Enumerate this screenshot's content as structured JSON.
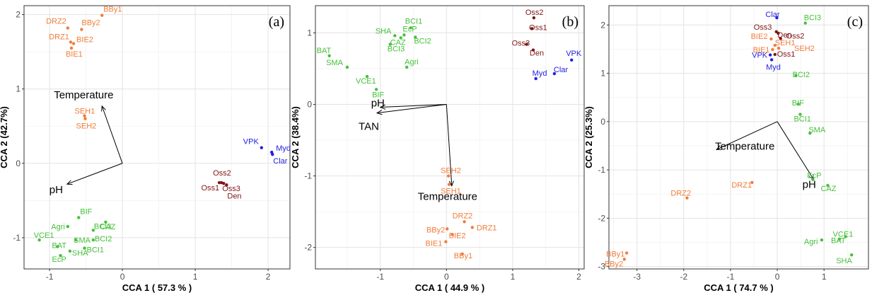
{
  "colors": {
    "gray": "#a01717",
    "orange": "#f07d3a",
    "green": "#45c13a",
    "blue": "#1f1fe0",
    "darkred": "#7f1515"
  },
  "chart_data": [
    {
      "type": "scatter",
      "panel_tag": "(a)",
      "xlabel": "CCA 1  ( 57.3 % )",
      "ylabel": "CCA 2 (42.7%)",
      "xlim": [
        -1.35,
        2.3
      ],
      "ylim": [
        -1.42,
        2.12
      ],
      "xticks": [
        -1,
        0,
        1,
        2
      ],
      "yticks": [
        -1,
        0,
        1,
        2
      ],
      "series": [
        {
          "color": "orange",
          "points": [
            {
              "label": "BBy1",
              "x": -0.28,
              "y": 1.99
            },
            {
              "label": "BBy2",
              "x": -0.56,
              "y": 1.8
            },
            {
              "label": "DRZ2",
              "x": -0.75,
              "y": 1.82
            },
            {
              "label": "DRZ1",
              "x": -0.71,
              "y": 1.63
            },
            {
              "label": "BIE2",
              "x": -0.67,
              "y": 1.61
            },
            {
              "label": "BIE1",
              "x": -0.7,
              "y": 1.55
            },
            {
              "label": "SEH1",
              "x": -0.52,
              "y": 0.64
            },
            {
              "label": "SEH2",
              "x": -0.51,
              "y": 0.6
            }
          ]
        },
        {
          "color": "blue",
          "points": [
            {
              "label": "VPK",
              "x": 1.91,
              "y": 0.21
            },
            {
              "label": "Myd",
              "x": 2.05,
              "y": 0.15
            },
            {
              "label": "Clar",
              "x": 2.06,
              "y": 0.12
            }
          ]
        },
        {
          "color": "darkred",
          "points": [
            {
              "label": "Oss2",
              "x": 1.33,
              "y": -0.26
            },
            {
              "label": "Oss1",
              "x": 1.36,
              "y": -0.26
            },
            {
              "label": "Oss3",
              "x": 1.39,
              "y": -0.27
            },
            {
              "label": "Den",
              "x": 1.43,
              "y": -0.29
            }
          ]
        },
        {
          "color": "green",
          "points": [
            {
              "label": "BIF",
              "x": -0.6,
              "y": -0.73
            },
            {
              "label": "CAZ",
              "x": -0.23,
              "y": -0.79
            },
            {
              "label": "Agri",
              "x": -0.75,
              "y": -0.85
            },
            {
              "label": "BCI3",
              "x": -0.4,
              "y": -0.9
            },
            {
              "label": "SMA",
              "x": -0.64,
              "y": -1.03
            },
            {
              "label": "BCI2",
              "x": -0.4,
              "y": -1.03
            },
            {
              "label": "VCE1",
              "x": -1.14,
              "y": -1.03
            },
            {
              "label": "BAT",
              "x": -0.89,
              "y": -1.12
            },
            {
              "label": "SHA",
              "x": -0.72,
              "y": -1.18
            },
            {
              "label": "BCI1",
              "x": -0.52,
              "y": -1.14
            },
            {
              "label": "EcP",
              "x": -0.85,
              "y": -1.24
            }
          ]
        }
      ],
      "vectors": [
        {
          "label": "Temperature",
          "x": -0.28,
          "y": 0.77
        },
        {
          "label": "pH",
          "x": -0.76,
          "y": -0.28
        }
      ]
    },
    {
      "type": "scatter",
      "panel_tag": "(b)",
      "xlabel": "CCA 1  ( 44.9 % )",
      "ylabel": "CCA 2 (38.4%)",
      "xlim": [
        -1.98,
        2.08
      ],
      "ylim": [
        -2.3,
        1.38
      ],
      "xticks": [
        -1,
        0,
        1,
        2
      ],
      "yticks": [
        -2,
        -1,
        0,
        1
      ],
      "series": [
        {
          "color": "green",
          "points": [
            {
              "label": "BCI1",
              "x": -0.54,
              "y": 1.07
            },
            {
              "label": "SHA",
              "x": -0.78,
              "y": 0.96
            },
            {
              "label": "EcP",
              "x": -0.64,
              "y": 0.97
            },
            {
              "label": "CAZ",
              "x": -0.69,
              "y": 0.93
            },
            {
              "label": "BCI2",
              "x": -0.47,
              "y": 0.94
            },
            {
              "label": "BCI3",
              "x": -0.85,
              "y": 0.84
            },
            {
              "label": "BAT",
              "x": -1.77,
              "y": 0.68
            },
            {
              "label": "SMA",
              "x": -1.5,
              "y": 0.52
            },
            {
              "label": "Agri",
              "x": -0.6,
              "y": 0.52
            },
            {
              "label": "VCE1",
              "x": -1.2,
              "y": 0.39
            },
            {
              "label": "BIF",
              "x": -1.06,
              "y": 0.21
            }
          ]
        },
        {
          "color": "darkred",
          "points": [
            {
              "label": "Oss2",
              "x": 1.32,
              "y": 1.21
            },
            {
              "label": "Oss1",
              "x": 1.29,
              "y": 1.06
            },
            {
              "label": "Oss3",
              "x": 1.21,
              "y": 0.84
            },
            {
              "label": "Den",
              "x": 1.31,
              "y": 0.76
            }
          ]
        },
        {
          "color": "blue",
          "points": [
            {
              "label": "VPK",
              "x": 1.89,
              "y": 0.62
            },
            {
              "label": "Clar",
              "x": 1.63,
              "y": 0.43
            },
            {
              "label": "Myd",
              "x": 1.35,
              "y": 0.36
            }
          ]
        },
        {
          "color": "orange",
          "points": [
            {
              "label": "SEH2",
              "x": 0.03,
              "y": -1.0
            },
            {
              "label": "SEH1",
              "x": 0.04,
              "y": -1.12
            },
            {
              "label": "DRZ2",
              "x": 0.27,
              "y": -1.64
            },
            {
              "label": "BBy2",
              "x": 0.01,
              "y": -1.74
            },
            {
              "label": "DRZ1",
              "x": 0.39,
              "y": -1.72
            },
            {
              "label": "BIE2",
              "x": 0.09,
              "y": -1.82
            },
            {
              "label": "BIE1",
              "x": -0.01,
              "y": -1.92
            },
            {
              "label": "BBy1",
              "x": 0.24,
              "y": -2.09
            }
          ]
        }
      ],
      "vectors": [
        {
          "label": "pH",
          "x": -1.0,
          "y": -0.04
        },
        {
          "label": "TAN",
          "x": -1.05,
          "y": -0.12
        },
        {
          "label": "Temperature",
          "x": 0.08,
          "y": -1.14
        }
      ]
    },
    {
      "type": "scatter",
      "panel_tag": "(c)",
      "xlabel": "CCA 1  ( 74.7 % )",
      "ylabel": "CCA 2 (25.3%)",
      "xlim": [
        -3.6,
        1.95
      ],
      "ylim": [
        -3.05,
        2.4
      ],
      "xticks": [
        -3,
        -2,
        -1,
        0,
        1
      ],
      "yticks": [
        -3,
        -2,
        -1,
        0,
        1,
        2
      ],
      "series": [
        {
          "color": "blue",
          "points": [
            {
              "label": "Clar",
              "x": -0.01,
              "y": 2.15
            },
            {
              "label": "VPK",
              "x": -0.15,
              "y": 1.38
            },
            {
              "label": "Myd",
              "x": -0.12,
              "y": 1.28
            }
          ]
        },
        {
          "color": "green",
          "points": [
            {
              "label": "BCI3",
              "x": 0.6,
              "y": 2.04
            },
            {
              "label": "BCI2",
              "x": 0.4,
              "y": 0.95
            },
            {
              "label": "BIF",
              "x": 0.45,
              "y": 0.36
            },
            {
              "label": "BCI1",
              "x": 0.49,
              "y": 0.15
            },
            {
              "label": "SMA",
              "x": 0.7,
              "y": -0.24
            },
            {
              "label": "EcP",
              "x": 0.76,
              "y": -1.2
            },
            {
              "label": "CAZ",
              "x": 1.08,
              "y": -1.32
            },
            {
              "label": "VCE1",
              "x": 1.46,
              "y": -2.38
            },
            {
              "label": "BAT",
              "x": 1.33,
              "y": -2.43
            },
            {
              "label": "Agri",
              "x": 0.95,
              "y": -2.45
            },
            {
              "label": "SHA",
              "x": 1.59,
              "y": -2.76
            }
          ]
        },
        {
          "color": "darkred",
          "points": [
            {
              "label": "Oss3",
              "x": -0.02,
              "y": 1.86
            },
            {
              "label": "Den",
              "x": 0.02,
              "y": 1.83
            },
            {
              "label": "Oss2",
              "x": 0.07,
              "y": 1.72
            },
            {
              "label": "Oss1",
              "x": -0.05,
              "y": 1.39
            }
          ]
        },
        {
          "color": "orange",
          "points": [
            {
              "label": "BIE2",
              "x": -0.13,
              "y": 1.71
            },
            {
              "label": "SEH1",
              "x": -0.05,
              "y": 1.58
            },
            {
              "label": "BIE1",
              "x": -0.1,
              "y": 1.49
            },
            {
              "label": "SEH2",
              "x": 0.03,
              "y": 1.52
            },
            {
              "label": "DRZ2",
              "x": -1.93,
              "y": -1.58
            },
            {
              "label": "DRZ1",
              "x": -0.54,
              "y": -1.26
            },
            {
              "label": "BBy1",
              "x": -3.22,
              "y": -2.72
            },
            {
              "label": "BBy2",
              "x": -3.27,
              "y": -2.85
            }
          ]
        }
      ],
      "vectors": [
        {
          "label": "Temperature",
          "x": -1.3,
          "y": -0.58
        },
        {
          "label": "pH",
          "x": 0.78,
          "y": -1.2
        }
      ]
    }
  ]
}
